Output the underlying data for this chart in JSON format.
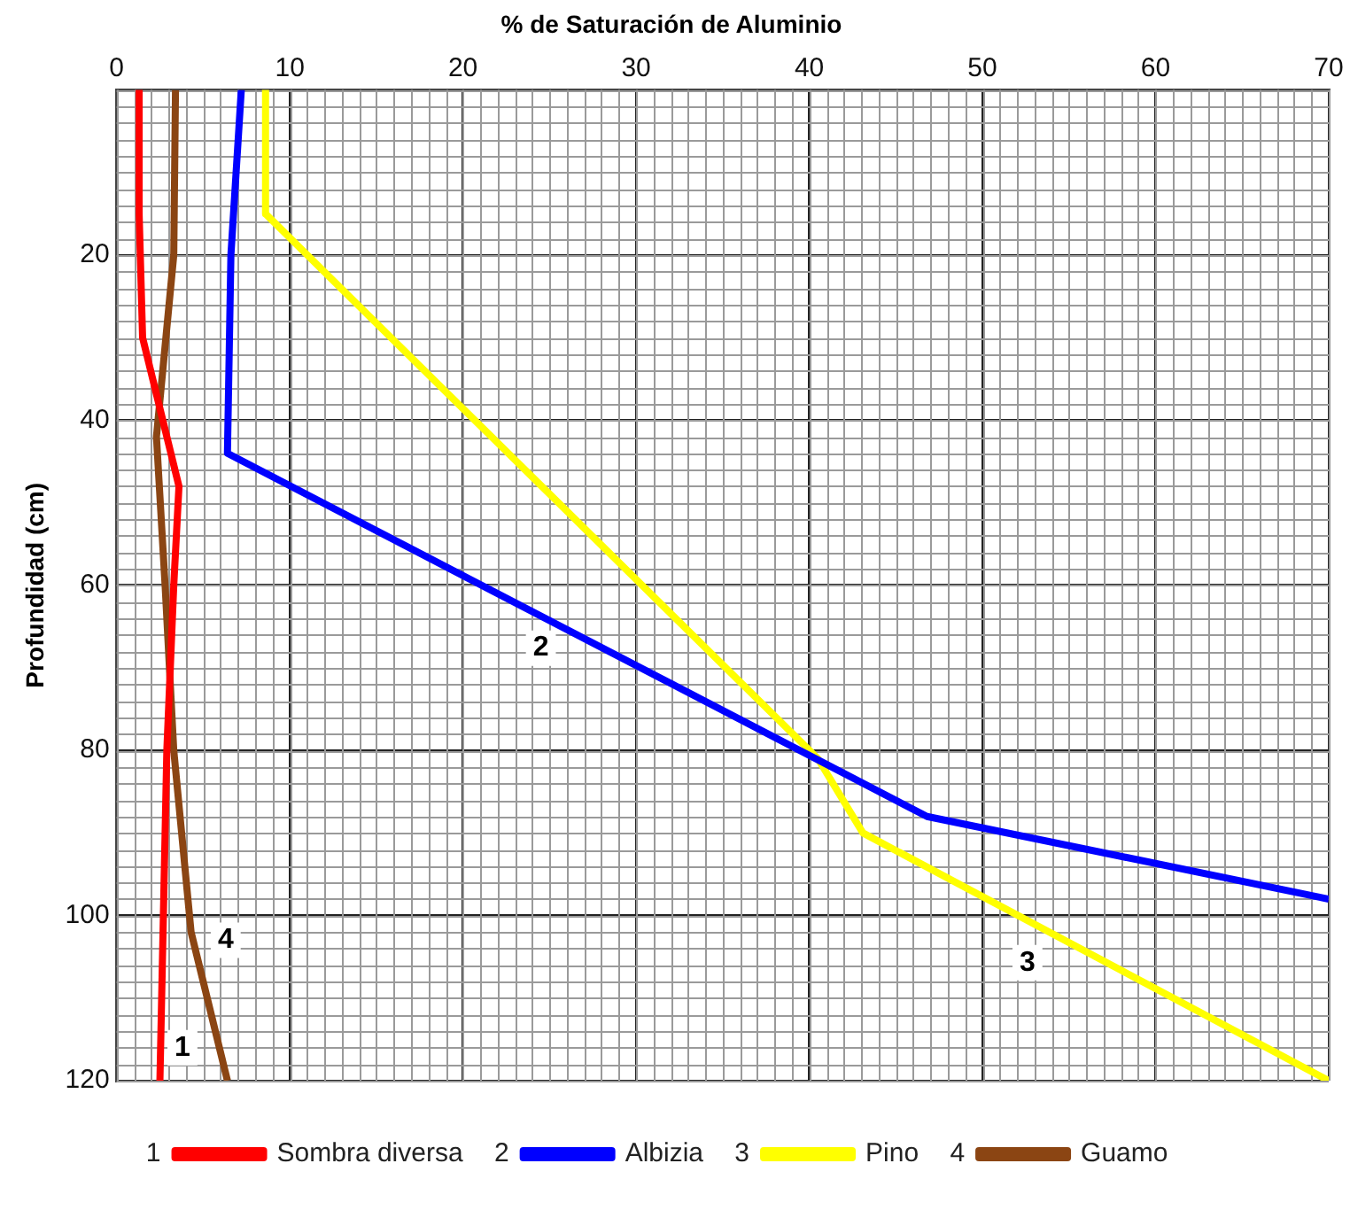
{
  "chart_data": {
    "type": "line",
    "title": "% de Saturación de Aluminio",
    "ylabel": "Profundidad (cm)",
    "xlim": [
      0,
      70
    ],
    "xticks": [
      0,
      10,
      20,
      30,
      40,
      50,
      60,
      70
    ],
    "ylim": [
      120,
      0
    ],
    "yticks": [
      20,
      40,
      60,
      80,
      100,
      120
    ],
    "grid": true,
    "legend": "bottom",
    "marker": "none",
    "line_style": "solid",
    "series": [
      {
        "name": "Sombra diversa",
        "color": "#ff0000",
        "x": [
          1.3,
          1.3,
          1.5,
          3.6,
          3.3,
          2.9,
          2.5
        ],
        "values": [
          0,
          15,
          30,
          48,
          60,
          80,
          120
        ]
      },
      {
        "name": "Albizia",
        "color": "#0000ff",
        "x": [
          7.2,
          6.6,
          6.4,
          46.8,
          70
        ],
        "values": [
          0,
          20,
          44,
          88,
          98
        ]
      },
      {
        "name": "Pino",
        "color": "#ffff00",
        "x": [
          8.6,
          8.6,
          40.5,
          43.1,
          70
        ],
        "values": [
          0,
          15,
          81,
          90,
          120
        ]
      },
      {
        "name": "Guamo",
        "color": "#8b4513",
        "x": [
          3.4,
          3.3,
          2.3,
          2.8,
          3.3,
          4.3,
          6.4
        ],
        "values": [
          0,
          20,
          42,
          60,
          80,
          102,
          120
        ]
      }
    ],
    "annotations": [
      {
        "text": "1",
        "x": 3.8,
        "y": 116
      },
      {
        "text": "2",
        "x": 24.5,
        "y": 67.6
      },
      {
        "text": "3",
        "x": 52.6,
        "y": 105.7
      },
      {
        "text": "4",
        "x": 6.3,
        "y": 103
      }
    ]
  }
}
